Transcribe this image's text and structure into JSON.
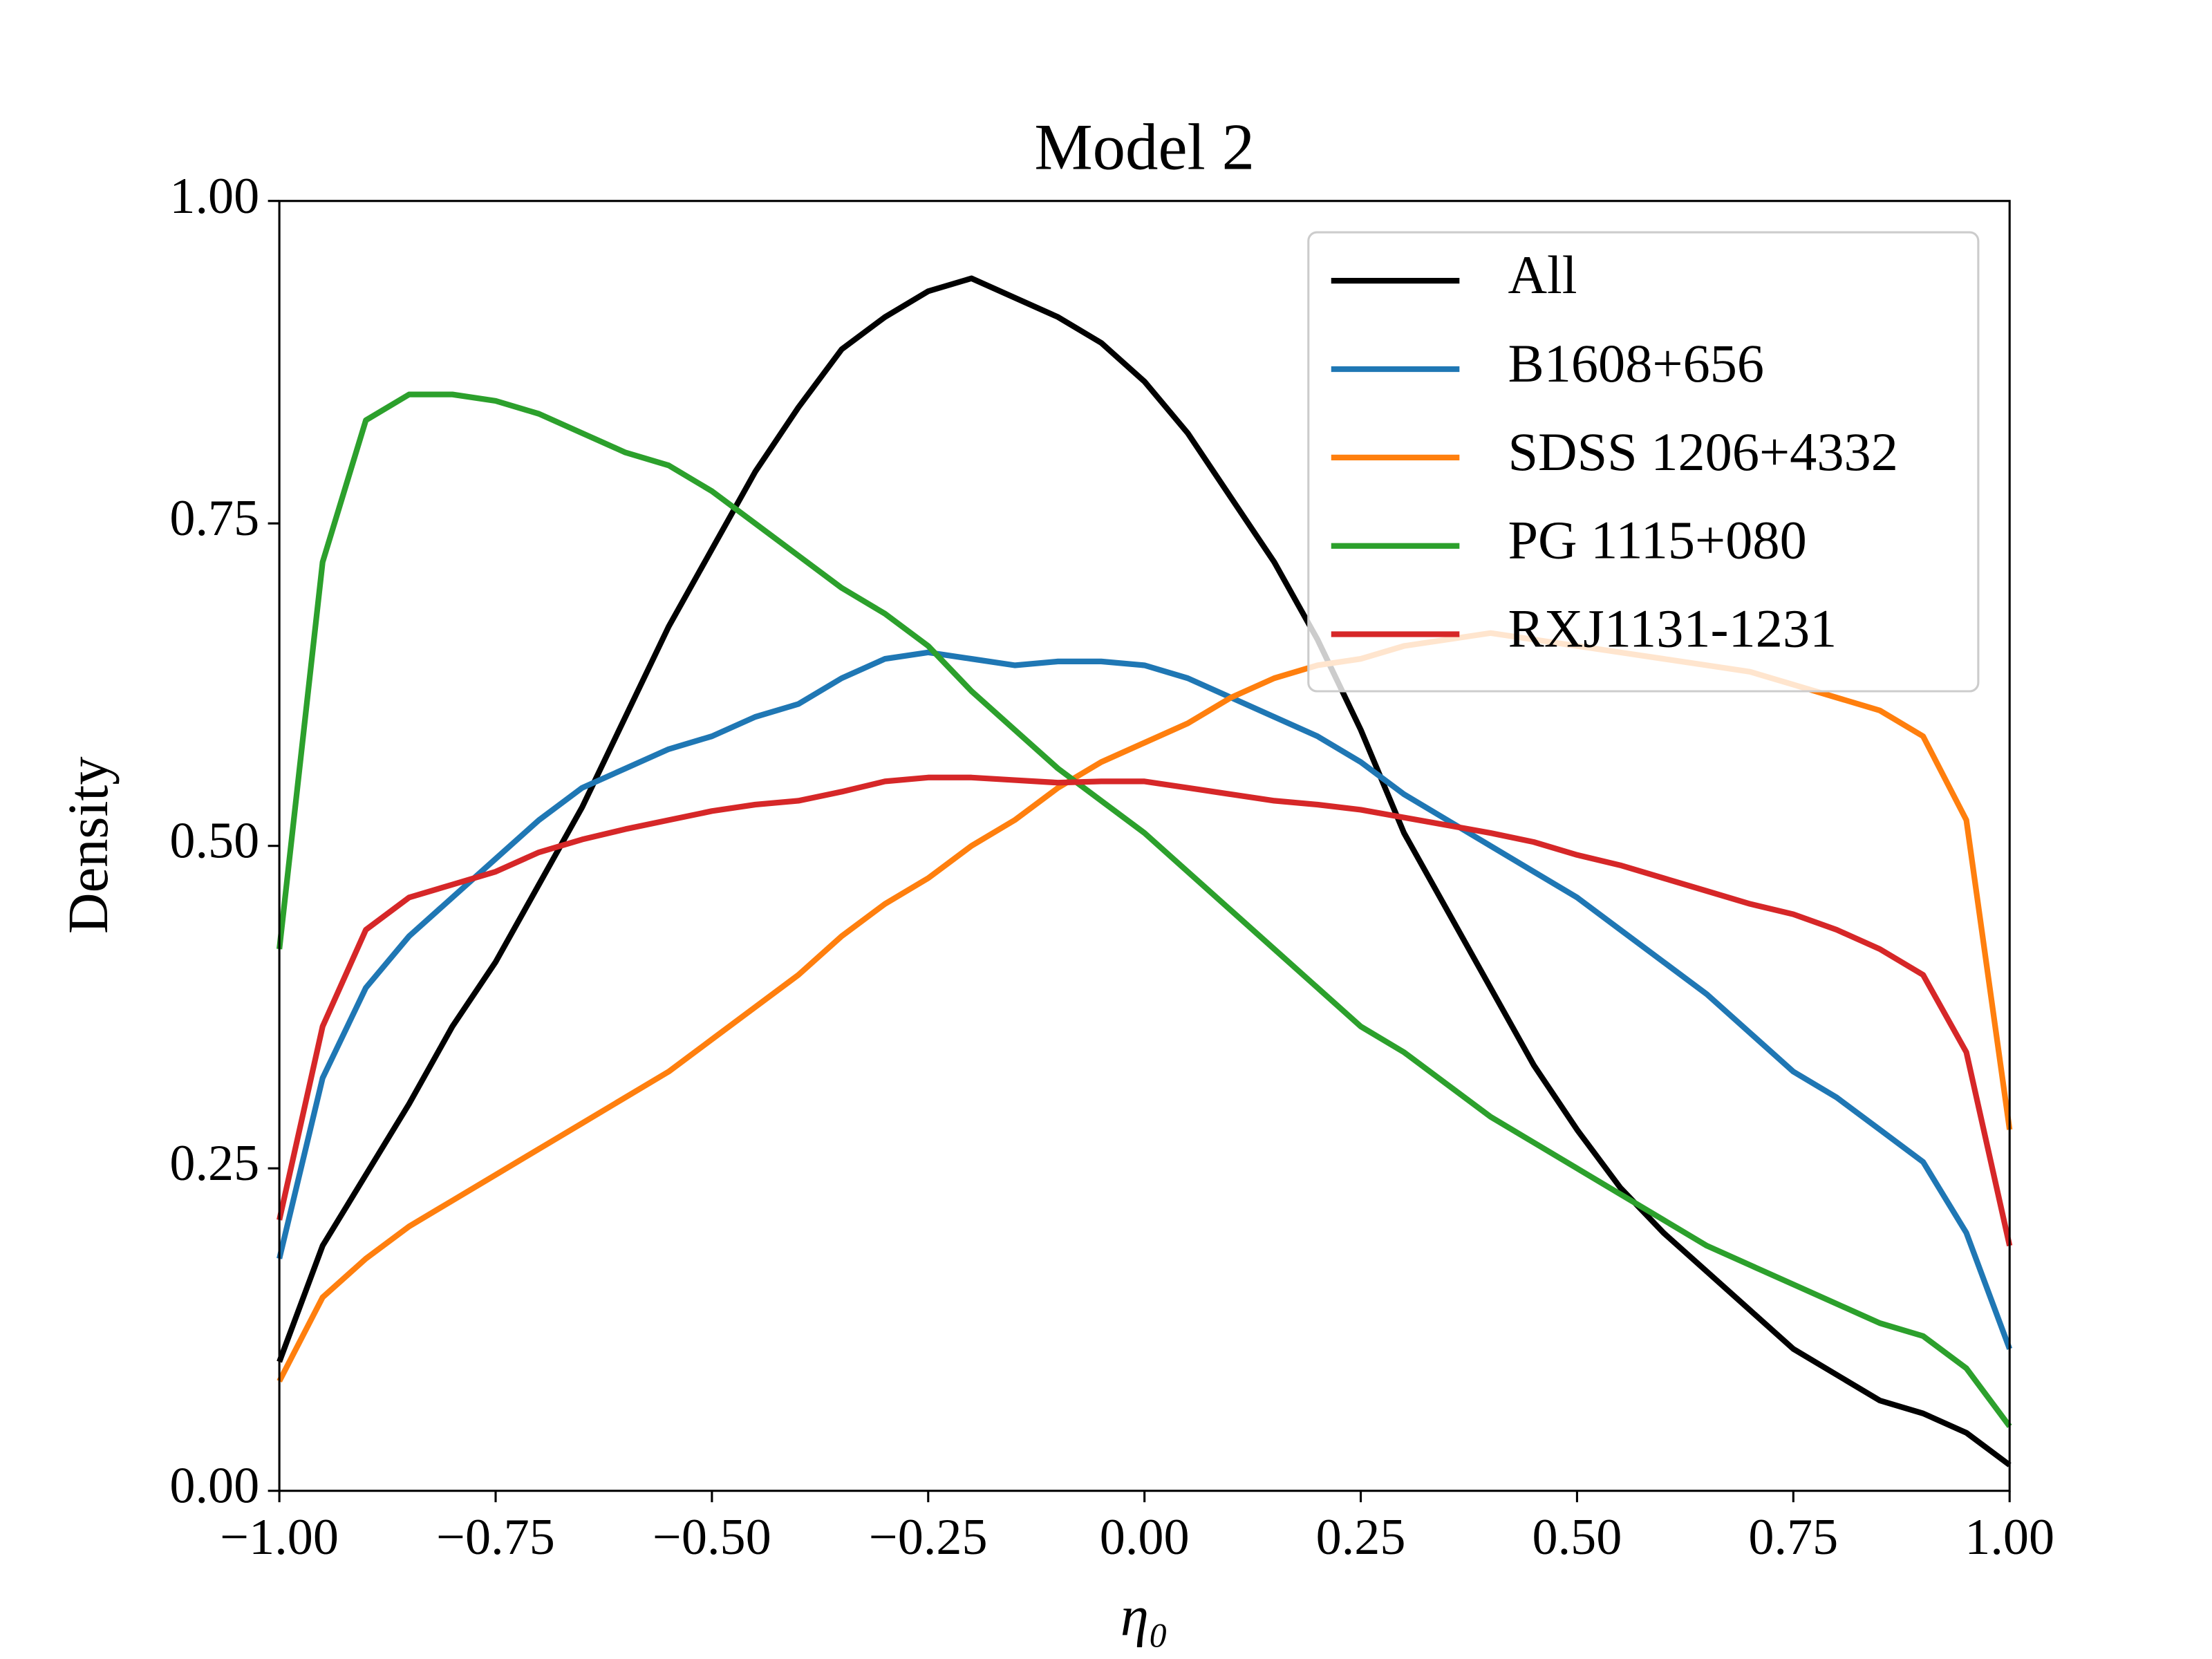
{
  "chart_data": {
    "type": "line",
    "title": "Model 2",
    "xlabel": "η₀",
    "ylabel": "Density",
    "x": [
      -1.0,
      -0.95,
      -0.9,
      -0.85,
      -0.8,
      -0.75,
      -0.7,
      -0.65,
      -0.6,
      -0.55,
      -0.5,
      -0.45,
      -0.4,
      -0.35,
      -0.3,
      -0.25,
      -0.2,
      -0.15,
      -0.1,
      -0.05,
      0.0,
      0.05,
      0.1,
      0.15,
      0.2,
      0.25,
      0.3,
      0.35,
      0.4,
      0.45,
      0.5,
      0.55,
      0.6,
      0.65,
      0.7,
      0.75,
      0.8,
      0.85,
      0.9,
      0.95,
      1.0
    ],
    "series": [
      {
        "name": "All",
        "color": "#000000",
        "values": [
          0.1,
          0.19,
          0.245,
          0.3,
          0.36,
          0.41,
          0.47,
          0.53,
          0.6,
          0.67,
          0.73,
          0.79,
          0.84,
          0.885,
          0.91,
          0.93,
          0.94,
          0.925,
          0.91,
          0.89,
          0.86,
          0.82,
          0.77,
          0.72,
          0.66,
          0.59,
          0.51,
          0.45,
          0.39,
          0.33,
          0.28,
          0.235,
          0.2,
          0.17,
          0.14,
          0.11,
          0.09,
          0.07,
          0.06,
          0.045,
          0.02
        ]
      },
      {
        "name": "B1608+656",
        "color": "#1f77b4",
        "values": [
          0.18,
          0.32,
          0.39,
          0.43,
          0.46,
          0.49,
          0.52,
          0.545,
          0.56,
          0.575,
          0.585,
          0.6,
          0.61,
          0.63,
          0.645,
          0.65,
          0.645,
          0.64,
          0.643,
          0.643,
          0.64,
          0.63,
          0.615,
          0.6,
          0.585,
          0.565,
          0.54,
          0.52,
          0.5,
          0.48,
          0.46,
          0.435,
          0.41,
          0.385,
          0.355,
          0.325,
          0.305,
          0.28,
          0.255,
          0.2,
          0.11
        ]
      },
      {
        "name": "SDSS 1206+4332",
        "color": "#ff7f0e",
        "values": [
          0.085,
          0.15,
          0.18,
          0.205,
          0.225,
          0.245,
          0.265,
          0.285,
          0.305,
          0.325,
          0.35,
          0.375,
          0.4,
          0.43,
          0.455,
          0.475,
          0.5,
          0.52,
          0.545,
          0.565,
          0.58,
          0.595,
          0.615,
          0.63,
          0.64,
          0.645,
          0.655,
          0.66,
          0.665,
          0.66,
          0.655,
          0.65,
          0.645,
          0.64,
          0.635,
          0.625,
          0.615,
          0.605,
          0.585,
          0.52,
          0.28
        ]
      },
      {
        "name": "PG 1115+080",
        "color": "#2ca02c",
        "values": [
          0.42,
          0.72,
          0.83,
          0.85,
          0.85,
          0.845,
          0.835,
          0.82,
          0.805,
          0.795,
          0.775,
          0.75,
          0.725,
          0.7,
          0.68,
          0.655,
          0.62,
          0.59,
          0.56,
          0.535,
          0.51,
          0.48,
          0.45,
          0.42,
          0.39,
          0.36,
          0.34,
          0.315,
          0.29,
          0.27,
          0.25,
          0.23,
          0.21,
          0.19,
          0.175,
          0.16,
          0.145,
          0.13,
          0.12,
          0.095,
          0.05
        ]
      },
      {
        "name": "RXJ1131-1231",
        "color": "#d62728",
        "values": [
          0.21,
          0.36,
          0.435,
          0.46,
          0.47,
          0.48,
          0.495,
          0.505,
          0.513,
          0.52,
          0.527,
          0.532,
          0.535,
          0.542,
          0.55,
          0.553,
          0.553,
          0.551,
          0.549,
          0.55,
          0.55,
          0.545,
          0.54,
          0.535,
          0.532,
          0.528,
          0.522,
          0.516,
          0.51,
          0.503,
          0.493,
          0.485,
          0.475,
          0.465,
          0.455,
          0.447,
          0.435,
          0.42,
          0.4,
          0.34,
          0.19
        ]
      }
    ],
    "xlim": [
      -1.0,
      1.0
    ],
    "ylim": [
      0.0,
      1.0
    ],
    "xticks": [
      {
        "value": -1.0,
        "label": "−1.00"
      },
      {
        "value": -0.75,
        "label": "−0.75"
      },
      {
        "value": -0.5,
        "label": "−0.50"
      },
      {
        "value": -0.25,
        "label": "−0.25"
      },
      {
        "value": 0.0,
        "label": "0.00"
      },
      {
        "value": 0.25,
        "label": "0.25"
      },
      {
        "value": 0.5,
        "label": "0.50"
      },
      {
        "value": 0.75,
        "label": "0.75"
      },
      {
        "value": 1.0,
        "label": "1.00"
      }
    ],
    "yticks": [
      {
        "value": 0.0,
        "label": "0.00"
      },
      {
        "value": 0.25,
        "label": "0.25"
      },
      {
        "value": 0.5,
        "label": "0.50"
      },
      {
        "value": 0.75,
        "label": "0.75"
      },
      {
        "value": 1.0,
        "label": "1.00"
      }
    ],
    "legend": "upper right"
  }
}
